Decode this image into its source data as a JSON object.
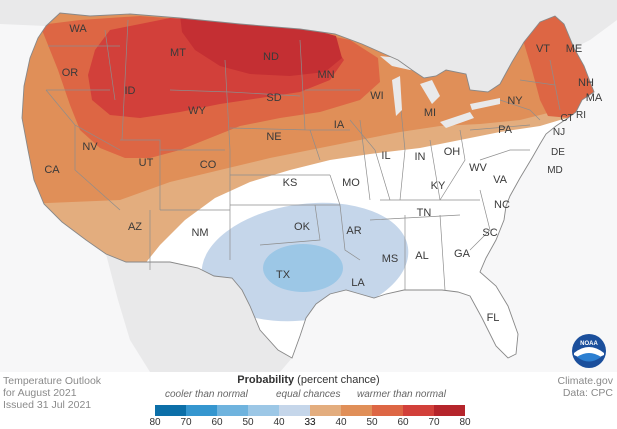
{
  "title_line1": "Temperature Outlook",
  "title_line2": "for August 2021",
  "issued": "Issued 31 Jul 2021",
  "credit_site": "Climate.gov",
  "credit_data": "Data: CPC",
  "logo_text": "NOAA",
  "legend": {
    "title_bold": "Probability",
    "title_rest": "(percent chance)",
    "cooler_label": "cooler than normal",
    "equal_label": "equal chances",
    "warmer_label": "warmer than normal",
    "cool_ticks": [
      "80",
      "70",
      "60",
      "50",
      "40",
      "33"
    ],
    "warm_ticks": [
      "33",
      "40",
      "50",
      "60",
      "70",
      "80"
    ],
    "cool_colors": [
      "#0c6fa8",
      "#3596cf",
      "#6fb3de",
      "#9cc7e6",
      "#c5d6ea"
    ],
    "neutral_color": "#ffffff",
    "warm_colors": [
      "#e3ad7e",
      "#e08f58",
      "#dd6644",
      "#d2403a",
      "#b5252b"
    ]
  },
  "states": [
    {
      "abbr": "WA"
    },
    {
      "abbr": "OR"
    },
    {
      "abbr": "CA"
    },
    {
      "abbr": "NV"
    },
    {
      "abbr": "ID"
    },
    {
      "abbr": "MT"
    },
    {
      "abbr": "WY"
    },
    {
      "abbr": "UT"
    },
    {
      "abbr": "AZ"
    },
    {
      "abbr": "CO"
    },
    {
      "abbr": "NM"
    },
    {
      "abbr": "ND"
    },
    {
      "abbr": "SD"
    },
    {
      "abbr": "NE"
    },
    {
      "abbr": "KS"
    },
    {
      "abbr": "OK"
    },
    {
      "abbr": "TX"
    },
    {
      "abbr": "MN"
    },
    {
      "abbr": "IA"
    },
    {
      "abbr": "MO"
    },
    {
      "abbr": "AR"
    },
    {
      "abbr": "LA"
    },
    {
      "abbr": "WI"
    },
    {
      "abbr": "IL"
    },
    {
      "abbr": "MI"
    },
    {
      "abbr": "IN"
    },
    {
      "abbr": "OH"
    },
    {
      "abbr": "KY"
    },
    {
      "abbr": "TN"
    },
    {
      "abbr": "MS"
    },
    {
      "abbr": "AL"
    },
    {
      "abbr": "GA"
    },
    {
      "abbr": "FL"
    },
    {
      "abbr": "SC"
    },
    {
      "abbr": "NC"
    },
    {
      "abbr": "VA"
    },
    {
      "abbr": "WV"
    },
    {
      "abbr": "PA"
    },
    {
      "abbr": "NY"
    },
    {
      "abbr": "VT"
    },
    {
      "abbr": "ME"
    },
    {
      "abbr": "NH"
    },
    {
      "abbr": "MA"
    },
    {
      "abbr": "CT"
    },
    {
      "abbr": "RI"
    },
    {
      "abbr": "NJ"
    },
    {
      "abbr": "DE"
    },
    {
      "abbr": "MD"
    }
  ]
}
